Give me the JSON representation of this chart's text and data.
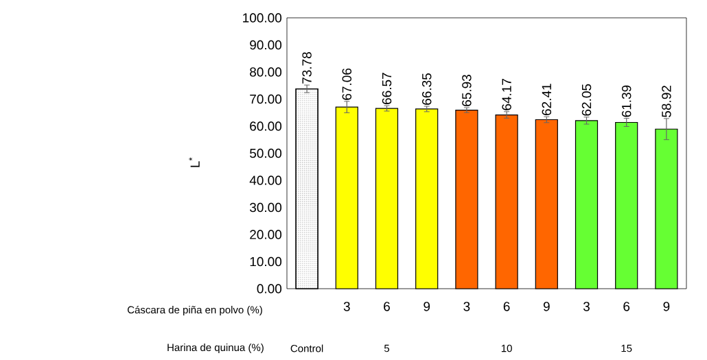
{
  "chart_data": {
    "type": "bar",
    "ylabel": "L$^{*}$",
    "categories": [
      null,
      "3",
      "6",
      "9",
      "3",
      "6",
      "9",
      "3",
      "6",
      "9"
    ],
    "values": [
      73.78,
      67.06,
      66.57,
      66.35,
      65.93,
      64.17,
      62.41,
      62.05,
      61.39,
      58.92
    ],
    "value_labels": [
      "73.78",
      "67.06",
      "66.57",
      "66.35",
      "65.93",
      "64.17",
      "62.41",
      "62.05",
      "61.39",
      "58.92"
    ],
    "errors": [
      1.4,
      2.1,
      1.0,
      1.0,
      0.9,
      1.2,
      1.1,
      1.3,
      1.5,
      3.9
    ],
    "colors": [
      "#ffffff",
      "#ffff00",
      "#ffff00",
      "#ffff00",
      "#ff6600",
      "#ff6600",
      "#ff6600",
      "#66ff33",
      "#66ff33",
      "#66ff33"
    ],
    "ylim": [
      0,
      100
    ],
    "yticks": [
      {
        "value": 0,
        "label": "0.00"
      },
      {
        "value": 10,
        "label": "10.00"
      },
      {
        "value": 20,
        "label": "20.00"
      },
      {
        "value": 30,
        "label": "30.00"
      },
      {
        "value": 40,
        "label": "40.00"
      },
      {
        "value": 50,
        "label": "50.00"
      },
      {
        "value": 60,
        "label": "60.00"
      },
      {
        "value": 70,
        "label": "70.00"
      },
      {
        "value": 80,
        "label": "80.00"
      },
      {
        "value": 90,
        "label": "90.00"
      },
      {
        "value": 100,
        "label": "100.00"
      }
    ],
    "grid": false,
    "annotations": [
      "Cáscara de piña en polvo (%)",
      "Harina de quinua (%)",
      "Control",
      "5",
      "10",
      "15"
    ]
  }
}
